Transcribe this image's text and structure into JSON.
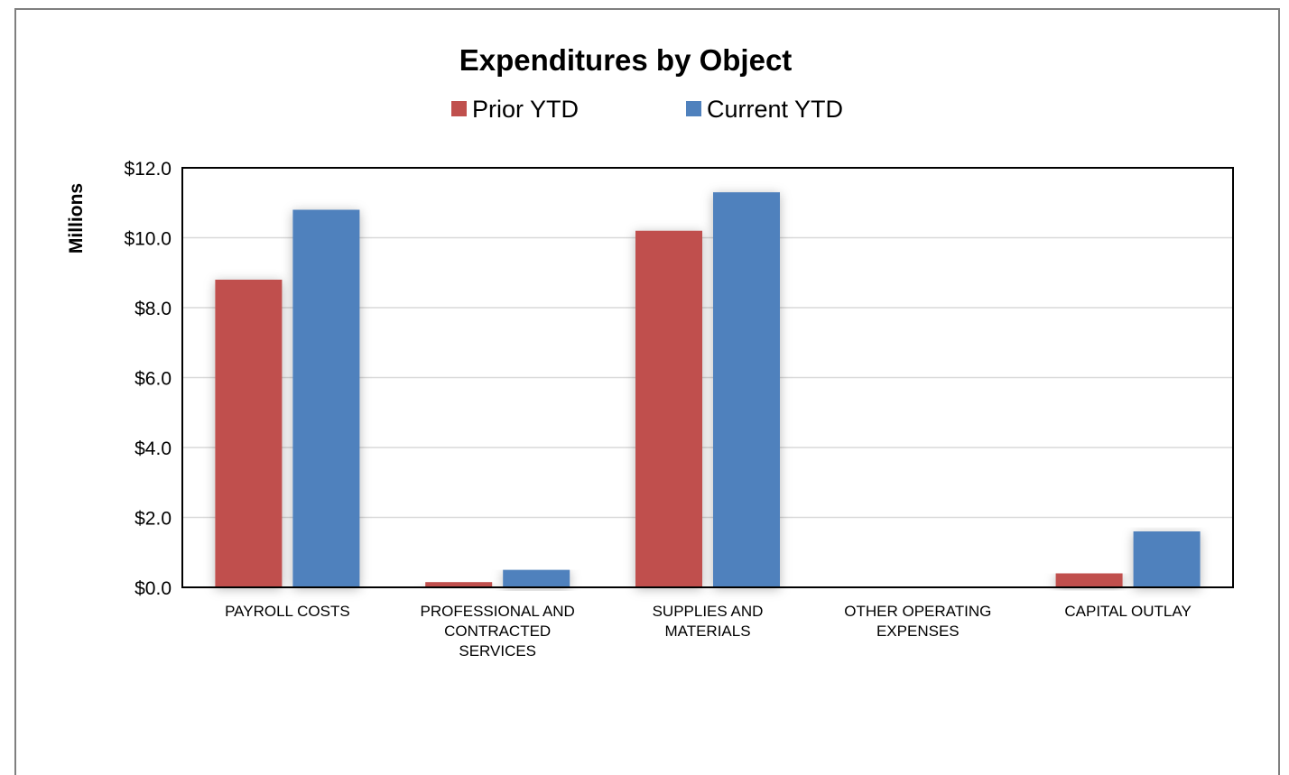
{
  "chart_data": {
    "type": "bar",
    "title": "Expenditures by Object",
    "ylabel": "Millions",
    "xlabel": "",
    "legend_position": "top",
    "ylim": [
      0,
      12
    ],
    "yticks": [
      0,
      2,
      4,
      6,
      8,
      10,
      12
    ],
    "ytick_labels": [
      "$0.0",
      "$2.0",
      "$4.0",
      "$6.0",
      "$8.0",
      "$10.0",
      "$12.0"
    ],
    "grid": true,
    "categories": [
      [
        "PAYROLL COSTS"
      ],
      [
        "PROFESSIONAL AND",
        "CONTRACTED",
        "SERVICES"
      ],
      [
        "SUPPLIES AND",
        "MATERIALS"
      ],
      [
        "OTHER OPERATING",
        "EXPENSES"
      ],
      [
        "CAPITAL OUTLAY"
      ]
    ],
    "series": [
      {
        "name": "Prior YTD",
        "color": "#c0504d",
        "values": [
          8.8,
          0.15,
          10.2,
          0.0,
          0.4
        ]
      },
      {
        "name": "Current YTD",
        "color": "#4f81bd",
        "values": [
          10.8,
          0.5,
          11.3,
          0.0,
          1.6
        ]
      }
    ]
  }
}
